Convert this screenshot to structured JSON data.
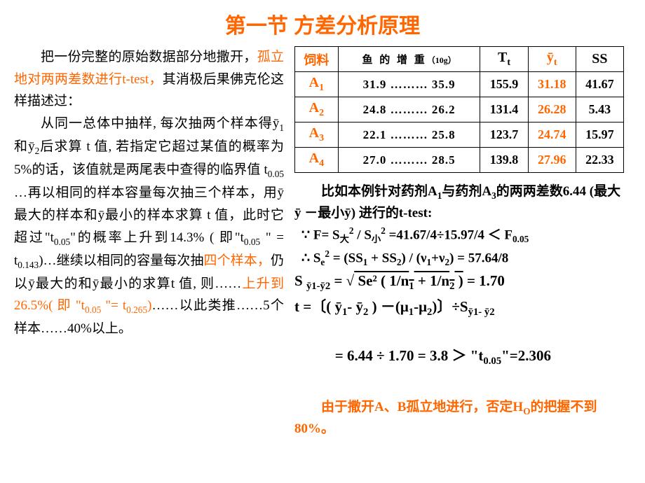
{
  "title": "第一节  方差分析原理",
  "left": {
    "p1_a": "把一份完整的原始数据部分地撒开，",
    "p1_b": "孤立地对两两差数进行t-test，",
    "p1_c": "其消极后果佛克伦这样描述过：",
    "p2_a": "从同一总体中抽样, 每次抽两个样本得ȳ",
    "p2_sub1": "1",
    "p2_b": "和ȳ",
    "p2_sub2": "2",
    "p2_c": "后求算 t 值, 若指定它超过某值的概率为5%的话，该值就是两尾表中查得的临界值 t",
    "p2_sub3": "0.05",
    "p2_d": " …再以相同的样本容量每次抽三个样本，用ȳ最大的样本和ȳ最小的样本求算 t 值，此时它超过\"t",
    "p2_sub4": "0.05",
    "p2_e": "\"的概率上升到14.3% ( 即\"t",
    "p2_sub5": "0.05",
    "p2_f": " \" = t",
    "p2_sub6": "0.143",
    "p2_g": ")…继续以相同的容量每次抽",
    "p2_h": "四个样本，",
    "p2_i": "仍以ȳ最大的和ȳ最小的求算t 值, 则……",
    "p2_j": "上升到26.5%( 即 \"t",
    "p2_sub7": "0.05",
    "p2_k": " \"= t",
    "p2_sub8": "0.265",
    "p2_l": ")",
    "p2_m": "……以此类推……5个样本……40%以上。"
  },
  "table": {
    "headers": {
      "feed": "饲料",
      "weight": "鱼 的 增 重",
      "weight_unit": "（10g）",
      "tt": "T",
      "tt_sub": "t",
      "ybar": "ȳ",
      "ybar_sub": "t",
      "ss": "SS"
    },
    "rows": [
      {
        "label": "A",
        "sub": "1",
        "w1": "31.9",
        "dots": "………",
        "w2": "35.9",
        "tt": "155.9",
        "ybar": "31.18",
        "ss": "41.67"
      },
      {
        "label": "A",
        "sub": "2",
        "w1": "24.8",
        "dots": "………",
        "w2": "26.2",
        "tt": "131.4",
        "ybar": "26.28",
        "ss": "5.43"
      },
      {
        "label": "A",
        "sub": "3",
        "w1": "22.1",
        "dots": "………",
        "w2": "25.8",
        "tt": "123.7",
        "ybar": "24.74",
        "ss": "15.97"
      },
      {
        "label": "A",
        "sub": "4",
        "w1": "27.0",
        "dots": "………",
        "w2": "28.5",
        "tt": "139.8",
        "ybar": "27.96",
        "ss": "22.33"
      }
    ]
  },
  "right": {
    "intro_a": "比如本例针对药剂A",
    "intro_s1": "1",
    "intro_b": "与药剂A",
    "intro_s2": "3",
    "intro_c": "的两两差数6.44 (最大ȳ  －最小ȳ) 进行的t-test:",
    "f1_a": "∵  F= S",
    "f1_s1": "大",
    "f1_b": " / S",
    "f1_s2": "小",
    "f1_c": " =41.67/4÷15.97/4 ＜ F",
    "f1_s3": "0.05",
    "f2_a": "∴  S",
    "f2_s1": "e",
    "f2_b": " = (SS",
    "f2_s2": "1",
    "f2_c": " + SS",
    "f2_s3": "2",
    "f2_d": ") / (ν",
    "f2_s4": "1",
    "f2_e": "+ν",
    "f2_s5": "2",
    "f2_f": ") = 57.64/8",
    "f3_a": "S ",
    "f3_s1": "ȳ1-ȳ2",
    "f3_b": " = √",
    "f3_sqrt": " Se² ( 1/n",
    "f3_s2": "1",
    "f3_c": " + 1/n",
    "f3_s3": "2",
    "f3_d": " )",
    "f3_e": " = 1.70",
    "f4_a": "t =〔( ȳ",
    "f4_s1": "1",
    "f4_b": "- ȳ",
    "f4_s2": "2",
    "f4_c": " ) －(μ",
    "f4_s3": "1",
    "f4_d": "-μ",
    "f4_s4": "2",
    "f4_e": ")〕÷S",
    "f4_s5": "ȳ1- ȳ2",
    "f5_a": "   = 6.44 ÷ 1.70 = 3.8 ＞ \"t",
    "f5_s1": "0.05",
    "f5_b": "\"=2.306",
    "concl_a": "由于撒开A、B孤立地进行，否定H",
    "concl_s1": "O",
    "concl_b": "的把握不到80%。"
  }
}
